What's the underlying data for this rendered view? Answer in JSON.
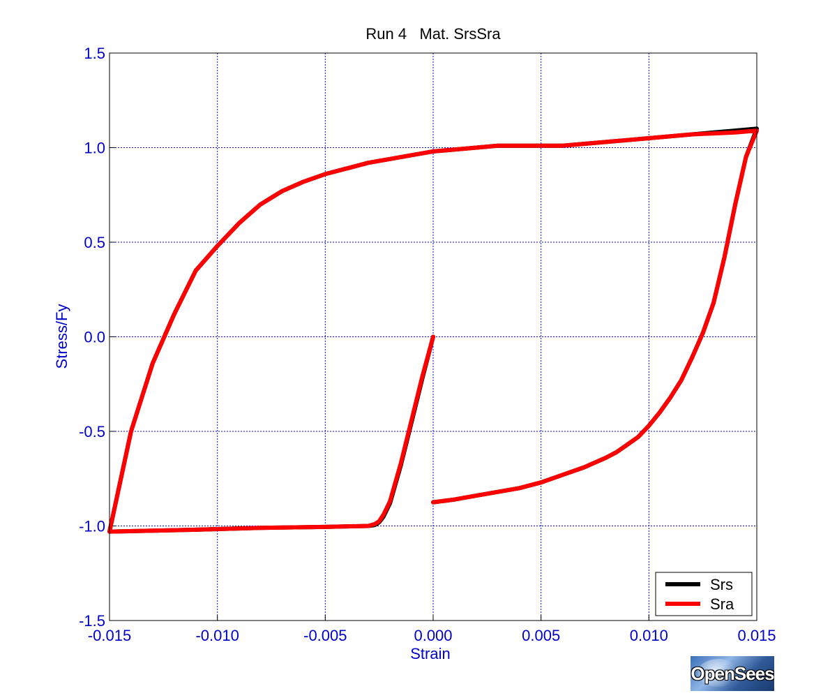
{
  "chart_data": {
    "type": "line",
    "title": "Run 4   Mat. SrsSra",
    "xlabel": "Strain",
    "ylabel": "Stress/Fy",
    "xlim": [
      -0.015,
      0.015
    ],
    "ylim": [
      -1.5,
      1.5
    ],
    "xticks": [
      -0.015,
      -0.01,
      -0.005,
      0.0,
      0.005,
      0.01,
      0.015
    ],
    "xtick_labels": [
      "-0.015",
      "-0.010",
      "-0.005",
      "0.000",
      "0.005",
      "0.010",
      "0.015"
    ],
    "yticks": [
      -1.5,
      -1.0,
      -0.5,
      0.0,
      0.5,
      1.0,
      1.5
    ],
    "ytick_labels": [
      "-1.5",
      "-1.0",
      "-0.5",
      "0.0",
      "0.5",
      "1.0",
      "1.5"
    ],
    "grid": true,
    "legend_position": "bottom-right",
    "series": [
      {
        "name": "Srs",
        "color": "#000000",
        "x": [
          0.0,
          -0.0005,
          -0.001,
          -0.0015,
          -0.002,
          -0.0023,
          -0.0025,
          -0.0027,
          -0.003,
          -0.005,
          -0.008,
          -0.011,
          -0.015,
          -0.014,
          -0.013,
          -0.012,
          -0.011,
          -0.01,
          -0.009,
          -0.008,
          -0.007,
          -0.006,
          -0.005,
          -0.004,
          -0.003,
          -0.002,
          -0.001,
          0.0,
          0.001,
          0.002,
          0.003,
          0.004,
          0.005,
          0.006,
          0.008,
          0.01,
          0.012,
          0.014,
          0.015,
          0.0145,
          0.014,
          0.0135,
          0.013,
          0.0125,
          0.012,
          0.0115,
          0.011,
          0.0105,
          0.01,
          0.0095,
          0.009,
          0.0085,
          0.008,
          0.007,
          0.006,
          0.005,
          0.004,
          0.003,
          0.002,
          0.001,
          0.0
        ],
        "y": [
          0.0,
          -0.22,
          -0.45,
          -0.68,
          -0.88,
          -0.95,
          -0.98,
          -0.995,
          -1.0,
          -1.005,
          -1.01,
          -1.02,
          -1.03,
          -0.5,
          -0.14,
          0.12,
          0.35,
          0.48,
          0.6,
          0.7,
          0.77,
          0.82,
          0.86,
          0.89,
          0.92,
          0.94,
          0.96,
          0.98,
          0.99,
          1.0,
          1.01,
          1.01,
          1.01,
          1.01,
          1.03,
          1.05,
          1.07,
          1.09,
          1.1,
          0.95,
          0.7,
          0.42,
          0.18,
          0.02,
          -0.11,
          -0.23,
          -0.32,
          -0.4,
          -0.47,
          -0.53,
          -0.57,
          -0.61,
          -0.64,
          -0.69,
          -0.73,
          -0.77,
          -0.8,
          -0.82,
          -0.84,
          -0.86,
          -0.875
        ]
      },
      {
        "name": "Sra",
        "color": "#ff0000",
        "x": [
          0.0,
          -0.0005,
          -0.001,
          -0.0015,
          -0.002,
          -0.0023,
          -0.0025,
          -0.0027,
          -0.003,
          -0.005,
          -0.008,
          -0.011,
          -0.015,
          -0.014,
          -0.013,
          -0.012,
          -0.011,
          -0.01,
          -0.009,
          -0.008,
          -0.007,
          -0.006,
          -0.005,
          -0.004,
          -0.003,
          -0.002,
          -0.001,
          0.0,
          0.001,
          0.002,
          0.003,
          0.004,
          0.005,
          0.006,
          0.008,
          0.01,
          0.012,
          0.014,
          0.015,
          0.0145,
          0.014,
          0.0135,
          0.013,
          0.0125,
          0.012,
          0.0115,
          0.011,
          0.0105,
          0.01,
          0.0095,
          0.009,
          0.0085,
          0.008,
          0.007,
          0.006,
          0.005,
          0.004,
          0.003,
          0.002,
          0.001,
          0.0
        ],
        "y": [
          0.0,
          -0.21,
          -0.44,
          -0.67,
          -0.87,
          -0.94,
          -0.975,
          -0.99,
          -1.0,
          -1.005,
          -1.01,
          -1.02,
          -1.03,
          -0.5,
          -0.14,
          0.12,
          0.35,
          0.48,
          0.6,
          0.7,
          0.77,
          0.82,
          0.86,
          0.89,
          0.92,
          0.94,
          0.96,
          0.98,
          0.99,
          1.0,
          1.01,
          1.01,
          1.01,
          1.01,
          1.03,
          1.05,
          1.07,
          1.08,
          1.09,
          0.95,
          0.7,
          0.42,
          0.18,
          0.02,
          -0.11,
          -0.23,
          -0.32,
          -0.4,
          -0.47,
          -0.53,
          -0.57,
          -0.61,
          -0.64,
          -0.69,
          -0.73,
          -0.77,
          -0.8,
          -0.82,
          -0.84,
          -0.86,
          -0.875
        ]
      }
    ]
  },
  "logo": {
    "text": "OpenSees"
  }
}
